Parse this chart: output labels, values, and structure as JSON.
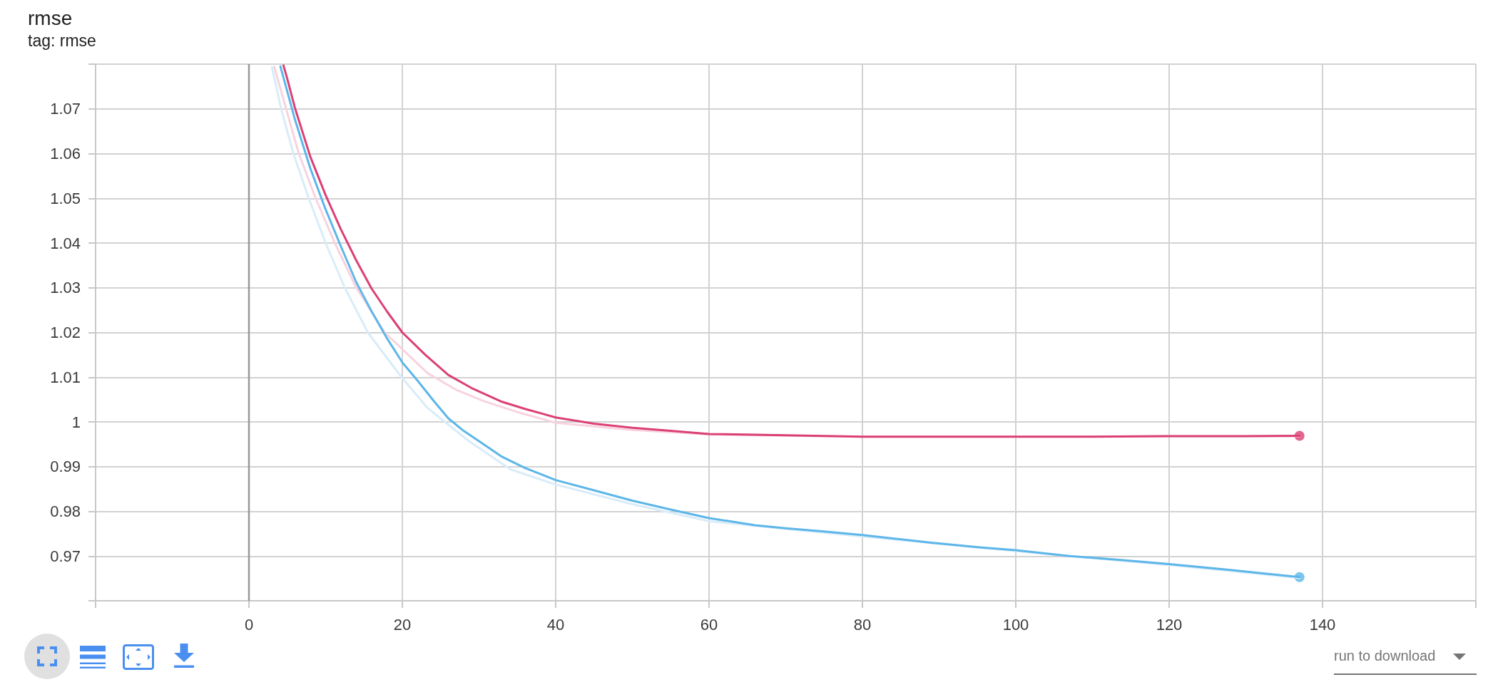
{
  "chart_data": {
    "type": "line",
    "title": "rmse",
    "subtitle": "tag: rmse",
    "annotations": [
      "run to download"
    ],
    "xlim": [
      -20,
      160
    ],
    "xticks": [
      {
        "value": -20,
        "label": null
      },
      0,
      20,
      40,
      60,
      80,
      100,
      120,
      140,
      {
        "value": 160,
        "label": null
      }
    ],
    "ylim": [
      0.96,
      1.08
    ],
    "yticks": [
      {
        "value": 0.96,
        "label": null
      },
      0.97,
      0.98,
      0.99,
      1,
      1.01,
      1.02,
      1.03,
      1.04,
      1.05,
      1.06,
      1.07,
      {
        "value": 1.08,
        "label": null
      }
    ],
    "grid": true,
    "marker": "none",
    "line_style": "solid",
    "ref_lines": [
      {
        "axis": "x",
        "value": 0,
        "color": "#999999"
      }
    ],
    "series": [
      {
        "color": "#f8d3de",
        "x": [
          3.3,
          4.9,
          6.5,
          8.7,
          11.2,
          14,
          17.7,
          23.3,
          27,
          30.7,
          35,
          40,
          50,
          60,
          80,
          100,
          120,
          137
        ],
        "values": [
          1.0794,
          1.0697,
          1.06,
          1.05,
          1.04,
          1.03,
          1.02,
          1.0109,
          1.0072,
          1.0046,
          1.0022,
          0.9998,
          0.9982,
          0.9972,
          0.9967,
          0.9967,
          0.9968,
          0.9968
        ]
      },
      {
        "color": "#d8ecf9",
        "x": [
          3,
          4.2,
          5.8,
          7.8,
          10,
          12.5,
          15.5,
          19.9,
          23.3,
          28.7,
          34.1,
          40,
          50,
          60,
          80,
          100,
          120,
          137
        ],
        "values": [
          1.0793,
          1.07,
          1.06,
          1.05,
          1.04,
          1.03,
          1.02,
          1.01,
          1.0031,
          0.9957,
          0.9894,
          0.986,
          0.9816,
          0.9778,
          0.9744,
          0.9711,
          0.968,
          0.9651
        ]
      },
      {
        "color": "#db4076",
        "x": [
          4.5,
          5,
          6,
          8,
          10,
          12,
          14,
          16,
          18,
          20,
          23,
          26,
          29,
          33,
          36,
          40,
          45,
          50,
          55,
          60,
          70,
          80,
          90,
          100,
          110,
          120,
          130,
          137
        ],
        "values": [
          1.0797,
          1.0767,
          1.0702,
          1.0593,
          1.0507,
          1.043,
          1.0361,
          1.0298,
          1.0247,
          1.02,
          1.015,
          1.0105,
          1.0076,
          1.0045,
          1.0029,
          1.001,
          0.9996,
          0.9987,
          0.998,
          0.9973,
          0.997,
          0.9967,
          0.9967,
          0.9967,
          0.9967,
          0.9968,
          0.9968,
          0.9969
        ]
      },
      {
        "color": "#5db6e9",
        "x": [
          4.1,
          5,
          6,
          8,
          10,
          12,
          14,
          16,
          18,
          20,
          22,
          24,
          26,
          28,
          30,
          33,
          36,
          40,
          45,
          50,
          55,
          60,
          66,
          70,
          75,
          80,
          89,
          95,
          100,
          107,
          114,
          120,
          128,
          137
        ],
        "values": [
          1.0795,
          1.0739,
          1.0676,
          1.0567,
          1.0475,
          1.0392,
          1.0312,
          1.0247,
          1.0187,
          1.0133,
          1.0092,
          1.0049,
          1.0008,
          0.998,
          0.9957,
          0.9922,
          0.9897,
          0.987,
          0.9847,
          0.9824,
          0.9804,
          0.9785,
          0.9769,
          0.9762,
          0.9755,
          0.9747,
          0.973,
          0.972,
          0.9713,
          0.97,
          0.9691,
          0.9682,
          0.9669,
          0.9653
        ]
      },
      {
        "type": "scatter",
        "marker": "circle",
        "color": "#db4076",
        "x": [
          137
        ],
        "values": [
          0.9969
        ]
      },
      {
        "type": "scatter",
        "marker": "circle",
        "color": "#5db6e9",
        "x": [
          137
        ],
        "values": [
          0.9653
        ]
      }
    ]
  }
}
